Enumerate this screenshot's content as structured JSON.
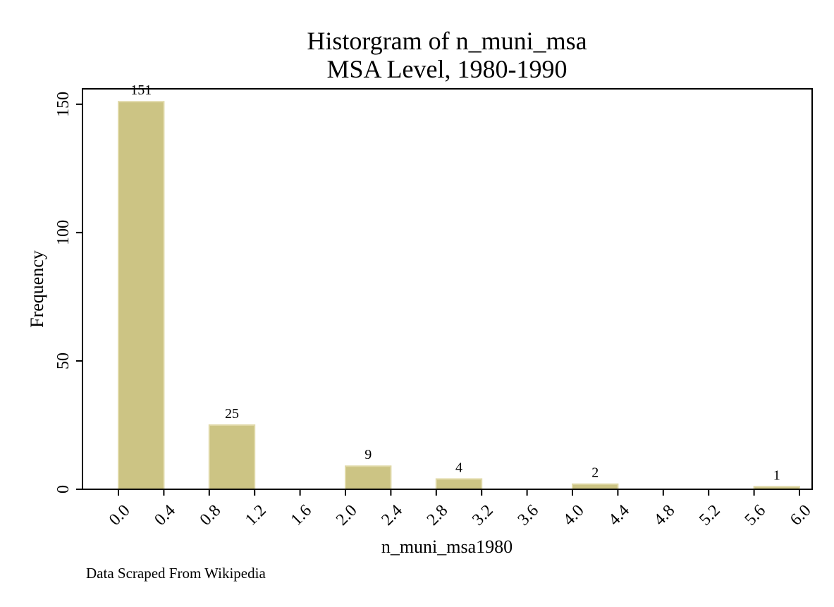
{
  "chart_data": {
    "type": "bar",
    "title": "Historgram of n_muni_msa",
    "subtitle": "MSA Level, 1980-1990",
    "xlabel": "n_muni_msa1980",
    "ylabel": "Frequency",
    "note": "Data Scraped From Wikipedia",
    "bins": [
      {
        "start": 0.0,
        "end": 0.4,
        "value": 151,
        "label": "151"
      },
      {
        "start": 0.8,
        "end": 1.2,
        "value": 25,
        "label": "25"
      },
      {
        "start": 2.0,
        "end": 2.4,
        "value": 9,
        "label": "9"
      },
      {
        "start": 2.8,
        "end": 3.2,
        "value": 4,
        "label": "4"
      },
      {
        "start": 4.0,
        "end": 4.4,
        "value": 2,
        "label": "2"
      },
      {
        "start": 5.6,
        "end": 6.0,
        "value": 1,
        "label": "1"
      }
    ],
    "x_ticks": [
      "0.0",
      "0.4",
      "0.8",
      "1.2",
      "1.6",
      "2.0",
      "2.4",
      "2.8",
      "3.2",
      "3.6",
      "4.0",
      "4.4",
      "4.8",
      "5.2",
      "5.6",
      "6.0"
    ],
    "x_tick_values": [
      0.0,
      0.4,
      0.8,
      1.2,
      1.6,
      2.0,
      2.4,
      2.8,
      3.2,
      3.6,
      4.0,
      4.4,
      4.8,
      5.2,
      5.6,
      6.0
    ],
    "y_ticks": [
      "0",
      "50",
      "100",
      "150"
    ],
    "y_tick_values": [
      0,
      50,
      100,
      150
    ],
    "xlim": [
      -0.3,
      6.1
    ],
    "ylim": [
      0,
      156
    ],
    "grid": false,
    "legend": "none",
    "colors": {
      "bar_fill": "#ccc484",
      "bar_edge": "#e0d9a8",
      "axis": "#000000"
    }
  }
}
